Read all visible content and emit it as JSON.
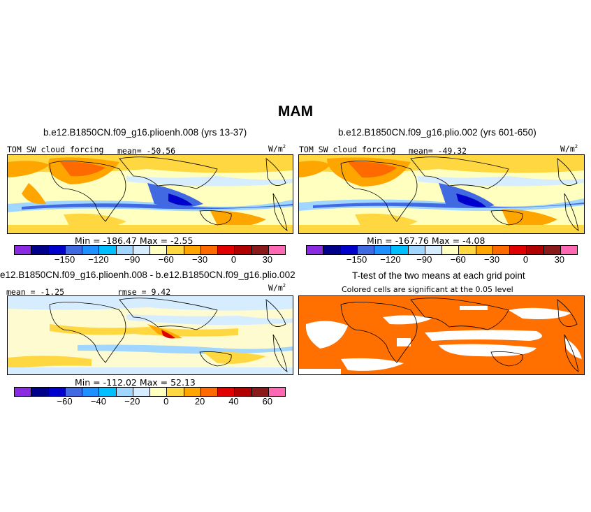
{
  "figure": {
    "title": "MAM",
    "panels": {
      "p1": {
        "title": "b.e12.B1850CN.f09_g16.plioenh.008 (yrs 13-37)",
        "field_label": "TOM SW cloud forcing",
        "mean_text": "mean= -50.56",
        "units": "W/m",
        "units_exp": "2",
        "minmax": "Min = -186.47 Max = -2.55",
        "ticks": [
          "-150",
          "-120",
          "-90",
          "-60",
          "-30",
          "0",
          "30"
        ]
      },
      "p2": {
        "title": "b.e12.B1850CN.f09_g16.plio.002 (yrs 601-650)",
        "field_label": "TOM SW cloud forcing",
        "mean_text": "mean= -49.32",
        "units": "W/m",
        "units_exp": "2",
        "minmax": "Min = -167.76 Max = -4.08",
        "ticks": [
          "-150",
          "-120",
          "-90",
          "-60",
          "-30",
          "0",
          "30"
        ]
      },
      "p3": {
        "title": "e12.B1850CN.f09_g16.plioenh.008 - b.e12.B1850CN.f09_g16.plio.002",
        "mean_text": "mean = -1.25",
        "rmse_text": "rmse = 9.42",
        "units": "W/m",
        "units_exp": "2",
        "minmax": "Min = -112.02 Max = 52.13",
        "ticks": [
          "-60",
          "-40",
          "-20",
          "0",
          "20",
          "40",
          "60"
        ]
      },
      "p4": {
        "title": "T-test of the two means at each grid point",
        "subtitle": "Colored cells are significant at the 0.05 level"
      }
    },
    "colorbar_colors": [
      "#8a2be2",
      "#00008b",
      "#0000cd",
      "#4169e1",
      "#1e90ff",
      "#00bfff",
      "#a0d6ff",
      "#d6ecff",
      "#ffffc0",
      "#ffd740",
      "#ffa500",
      "#ff6a00",
      "#e00000",
      "#b00000",
      "#8b1a1a",
      "#ff69b4"
    ],
    "colors": {
      "land_bg": "#ffffff",
      "sig_color": "#ff7000",
      "ocean_neutral": "#fffbd0"
    }
  }
}
